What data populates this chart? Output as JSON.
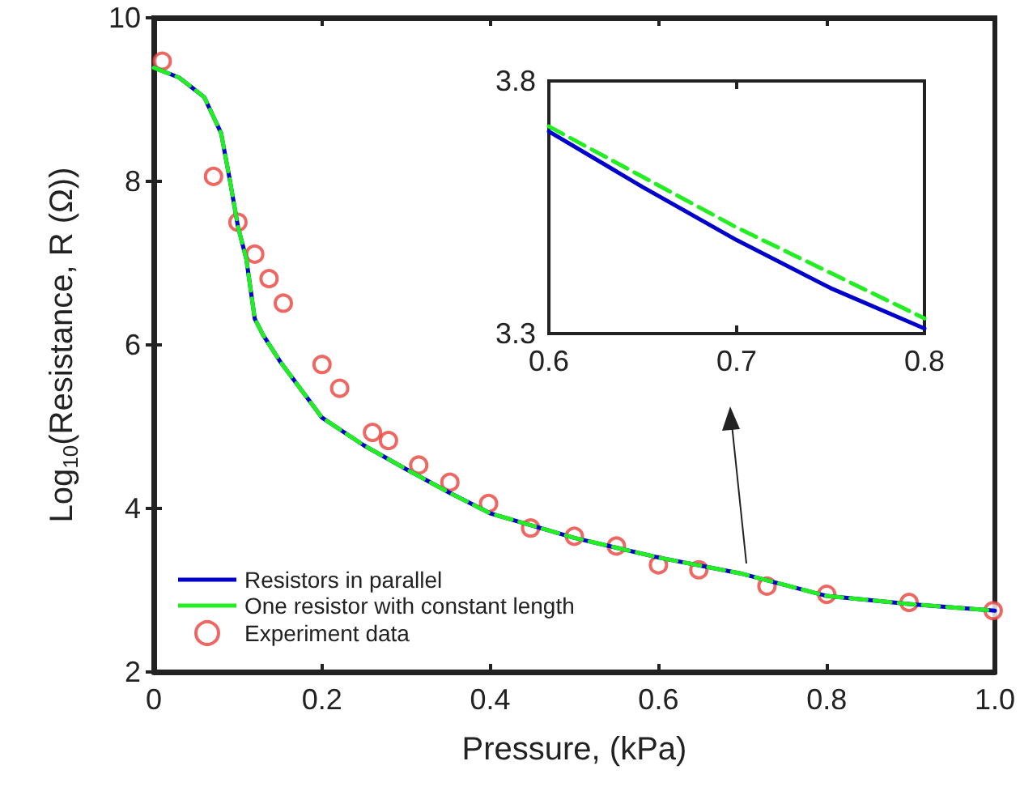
{
  "chart_data": [
    {
      "type": "line",
      "xlabel": "Pressure, (kPa)",
      "ylabel": "Log$_{10}$(Resistance, R (Ω))",
      "xlim": [
        0,
        1
      ],
      "ylim": [
        2,
        10
      ],
      "xticks": [
        0,
        0.2,
        0.4,
        0.6,
        0.8,
        {
          "value": 1,
          "label": "1.0"
        }
      ],
      "yticks": [
        2,
        4,
        6,
        8,
        10
      ],
      "grid": false,
      "legend": "bottom left",
      "series": [
        {
          "name": "Resistors in parallel",
          "color": "#0000cc",
          "line_style": "solid",
          "marker": "none",
          "x": [
            0,
            0.03,
            0.06,
            0.08,
            0.09,
            0.1,
            0.11,
            0.12,
            0.13,
            0.15,
            0.2,
            0.25,
            0.3,
            0.35,
            0.4,
            0.5,
            0.6,
            0.7,
            0.8,
            0.9,
            1
          ],
          "values": [
            9.39,
            9.27,
            9.03,
            8.59,
            8.04,
            7.45,
            7.05,
            6.32,
            6.12,
            5.8,
            5.11,
            4.77,
            4.48,
            4.2,
            3.94,
            3.64,
            3.4,
            3.2,
            2.93,
            2.83,
            2.75
          ]
        },
        {
          "name": "One resistor with constant length",
          "color": "#22ee22",
          "line_style": "dashed",
          "marker": "none",
          "x": [
            0,
            0.03,
            0.06,
            0.08,
            0.09,
            0.1,
            0.11,
            0.12,
            0.13,
            0.15,
            0.2,
            0.25,
            0.3,
            0.35,
            0.4,
            0.5,
            0.6,
            0.7,
            0.8,
            0.9,
            1
          ],
          "values": [
            9.39,
            9.27,
            9.03,
            8.59,
            8.04,
            7.45,
            7.05,
            6.32,
            6.12,
            5.8,
            5.11,
            4.77,
            4.48,
            4.2,
            3.94,
            3.64,
            3.4,
            3.2,
            2.93,
            2.83,
            2.75
          ]
        },
        {
          "name": "Experiment data",
          "type": "scatter",
          "color": "#e8413c",
          "marker": "circle",
          "x": [
            0.01,
            0.071,
            0.1,
            0.12,
            0.137,
            0.154,
            0.2,
            0.221,
            0.26,
            0.279,
            0.315,
            0.352,
            0.398,
            0.448,
            0.5,
            0.55,
            0.6,
            0.648,
            0.729,
            0.8,
            0.898,
            0.998
          ],
          "values": [
            9.47,
            8.06,
            7.5,
            7.11,
            6.81,
            6.51,
            5.76,
            5.47,
            4.93,
            4.83,
            4.53,
            4.32,
            4.06,
            3.76,
            3.66,
            3.54,
            3.31,
            3.25,
            3.05,
            2.95,
            2.85,
            2.75
          ]
        }
      ]
    },
    {
      "type": "line",
      "xlim": [
        0.6,
        0.8
      ],
      "ylim": [
        3.3,
        3.8
      ],
      "xticks": [
        0.6,
        0.7,
        0.8
      ],
      "yticks": [
        3.3,
        3.8
      ],
      "grid": false,
      "legend": false,
      "series": [
        {
          "color": "#0000cc",
          "line_style": "solid",
          "marker": "none",
          "x": [
            0.6,
            0.65,
            0.7,
            0.75,
            0.8
          ],
          "values": [
            3.7,
            3.59,
            3.485,
            3.39,
            3.31
          ]
        },
        {
          "color": "#22ee22",
          "line_style": "dashed",
          "marker": "none",
          "x": [
            0.6,
            0.65,
            0.7,
            0.75,
            0.8
          ],
          "values": [
            3.71,
            3.61,
            3.51,
            3.42,
            3.33
          ]
        }
      ]
    }
  ]
}
